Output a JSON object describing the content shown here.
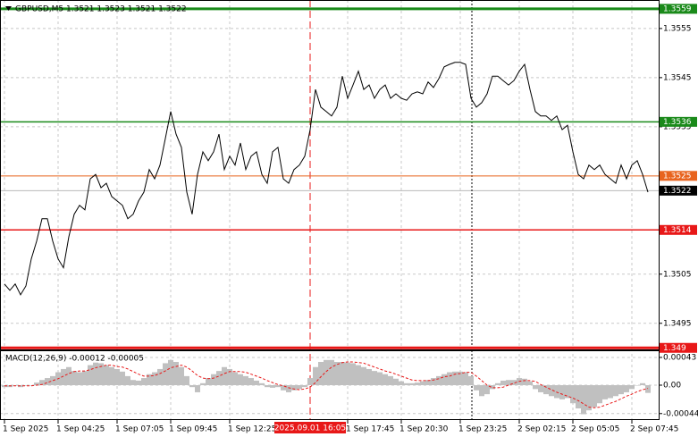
{
  "chart_data": [
    {
      "type": "line",
      "title": "GBPUSD,M5  1.3521 1.3523 1.3521 1.3522",
      "color": "#000000",
      "categories": [
        "1 Sep 2025",
        null,
        null,
        null,
        null,
        null,
        null,
        null,
        null,
        null,
        "1 Sep 04:25",
        null,
        null,
        null,
        null,
        null,
        null,
        null,
        null,
        null,
        null,
        "1 Sep 07:05",
        null,
        null,
        null,
        null,
        null,
        null,
        null,
        null,
        null,
        "1 Sep 09:45",
        null,
        null,
        null,
        null,
        null,
        null,
        null,
        null,
        null,
        null,
        "1 Sep 12:25",
        null,
        null,
        null,
        null,
        null,
        null,
        null,
        null,
        null,
        null,
        null,
        null,
        null,
        null,
        "2025.09.01 16:05",
        null,
        null,
        null,
        null,
        null,
        null,
        "1 Sep 17:45",
        null,
        null,
        null,
        null,
        null,
        null,
        null,
        null,
        null,
        "1 Sep 20:30",
        null,
        null,
        null,
        null,
        null,
        null,
        null,
        null,
        null,
        null,
        "1 Sep 23:25",
        null,
        null,
        null,
        null,
        null,
        null,
        null,
        null,
        null,
        null,
        "2 Sep 02:15",
        null,
        null,
        null,
        null,
        null,
        null,
        null,
        null,
        null,
        "2 Sep 05:05",
        null,
        null,
        null,
        null,
        null,
        null,
        null,
        null,
        null,
        null,
        "2 Sep 07:45",
        null,
        null,
        null
      ],
      "values": [
        1.3503,
        1.35017,
        1.3503,
        1.35008,
        1.35026,
        1.35081,
        1.35117,
        1.35163,
        1.35163,
        1.35117,
        1.35081,
        1.35063,
        1.35126,
        1.35172,
        1.3519,
        1.35181,
        1.35244,
        1.35253,
        1.35226,
        1.35235,
        1.35208,
        1.35199,
        1.3519,
        1.35163,
        1.35172,
        1.35199,
        1.35217,
        1.35263,
        1.35244,
        1.35272,
        1.35326,
        1.35381,
        1.35335,
        1.35308,
        1.35217,
        1.35172,
        1.35253,
        1.35299,
        1.35281,
        1.35299,
        1.35335,
        1.35263,
        1.3529,
        1.35272,
        1.35317,
        1.35263,
        1.3529,
        1.35299,
        1.35253,
        1.35235,
        1.35299,
        1.35308,
        1.35244,
        1.35235,
        1.35263,
        1.35272,
        1.3529,
        1.35344,
        1.35426,
        1.3539,
        1.35381,
        1.35372,
        1.3539,
        1.35453,
        1.35408,
        1.35435,
        1.35463,
        1.35426,
        1.35435,
        1.35408,
        1.35426,
        1.35435,
        1.35408,
        1.35417,
        1.35408,
        1.35404,
        1.35417,
        1.35421,
        1.35417,
        1.35441,
        1.3543,
        1.35448,
        1.35472,
        1.35477,
        1.35481,
        1.35481,
        1.35477,
        1.35408,
        1.3539,
        1.35399,
        1.35417,
        1.35453,
        1.35453,
        1.35444,
        1.35435,
        1.35444,
        1.35463,
        1.35477,
        1.35426,
        1.35381,
        1.35372,
        1.35372,
        1.35363,
        1.35372,
        1.35344,
        1.35353,
        1.35299,
        1.35253,
        1.35244,
        1.35272,
        1.35263,
        1.35272,
        1.35253,
        1.35244,
        1.35235,
        1.35272,
        1.35244,
        1.35272,
        1.35281,
        1.35253,
        1.35217
      ],
      "ylim": [
        1.34895,
        1.35608
      ],
      "yticks": [
        1.3555,
        1.3545,
        1.3535,
        1.3505,
        1.3495
      ],
      "grid": true,
      "levels": [
        {
          "value": 1.3559,
          "color": "#1a8a1a",
          "line_width": 3
        },
        {
          "value": 1.3536,
          "color": "#1a8a1a",
          "line_width": 1.5
        },
        {
          "value": 1.3525,
          "color": "#e8641e",
          "line_width": 1
        },
        {
          "value": 1.3514,
          "color": "#e81818",
          "line_width": 1.5
        },
        {
          "value": 1.349,
          "color": "#e81818",
          "line_width": 3
        }
      ],
      "current": {
        "value": 1.3522,
        "color": "#000000"
      },
      "crosshair": "2025.09.01 16:05",
      "crosshair_color": "#e81818"
    },
    {
      "type": "macd",
      "title": "MACD(12,26,9) -0.00012 -0.00005",
      "ylim": [
        -0.00054,
        0.00054
      ],
      "yticks": [
        0.00043,
        {
          "value": 0,
          "label": "0.00"
        },
        -0.00044
      ],
      "series": [
        {
          "name": "MACD",
          "color": "#c0c0c0",
          "values": [
            -3e-05,
            -3e-05,
            -1e-05,
            -3e-05,
            -1e-05,
            0,
            4e-05,
            8e-05,
            0.00011,
            0.00014,
            0.0002,
            0.00025,
            0.00028,
            0.00022,
            0.0002,
            0.00022,
            0.00031,
            0.00035,
            0.00034,
            0.00031,
            0.00028,
            0.00025,
            0.00021,
            0.00014,
            8e-05,
            7e-05,
            0.00011,
            0.00017,
            0.0002,
            0.00025,
            0.00034,
            0.00039,
            0.00036,
            0.00028,
            0.00014,
            -3e-05,
            -0.00011,
            3e-05,
            0.00011,
            0.00017,
            0.00022,
            0.00028,
            0.00025,
            0.0002,
            0.00017,
            0.00014,
            0.00011,
            7e-05,
            3e-05,
            -3e-05,
            -4e-05,
            -3e-05,
            -8e-05,
            -0.00011,
            -8e-05,
            -6e-05,
            -3e-05,
            0.00011,
            0.00028,
            0.00036,
            0.00039,
            0.00039,
            0.00036,
            0.00036,
            0.00035,
            0.00034,
            0.00031,
            0.00028,
            0.00025,
            0.00022,
            0.0002,
            0.00017,
            0.00014,
            0.0001,
            6e-05,
            3e-05,
            3e-05,
            4e-05,
            6e-05,
            8e-05,
            0.00011,
            0.00014,
            0.00017,
            0.0002,
            0.00021,
            0.00021,
            0.0002,
            0.00014,
            -8e-05,
            -0.00017,
            -0.00014,
            -6e-05,
            3e-05,
            7e-05,
            8e-05,
            8e-05,
            0.00011,
            0.0001,
            6e-05,
            -6e-05,
            -0.00011,
            -0.00014,
            -0.00017,
            -0.0002,
            -0.00022,
            -0.0002,
            -0.00028,
            -0.00036,
            -0.00045,
            -0.00039,
            -0.00034,
            -0.00028,
            -0.00022,
            -0.0002,
            -0.00017,
            -0.00014,
            -0.00011,
            -6e-05,
            0,
            3e-05,
            -0.00012
          ]
        },
        {
          "name": "Signal",
          "color": "#e81818",
          "values": [
            -1e-05,
            -1e-05,
            -1e-05,
            -1e-05,
            -1e-05,
            -1e-05,
            0,
            1e-05,
            4e-05,
            7e-05,
            0.0001,
            0.00014,
            0.00018,
            0.00021,
            0.00022,
            0.00022,
            0.00024,
            0.00027,
            0.00029,
            0.00031,
            0.00031,
            0.00029,
            0.00028,
            0.00025,
            0.00021,
            0.00017,
            0.00014,
            0.00014,
            0.00015,
            0.00018,
            0.00022,
            0.00027,
            0.00029,
            0.00031,
            0.00028,
            0.00022,
            0.00015,
            0.00011,
            0.0001,
            0.00011,
            0.00014,
            0.00018,
            0.00021,
            0.00021,
            0.00021,
            0.0002,
            0.00017,
            0.00014,
            0.00011,
            7e-05,
            4e-05,
            1e-05,
            -1e-05,
            -4e-05,
            -6e-05,
            -7e-05,
            -6e-05,
            -3e-05,
            4e-05,
            0.00013,
            0.00021,
            0.00028,
            0.00032,
            0.00035,
            0.00036,
            0.00036,
            0.00035,
            0.00034,
            0.00031,
            0.00028,
            0.00025,
            0.00022,
            0.0002,
            0.00017,
            0.00014,
            0.00011,
            8e-05,
            7e-05,
            7e-05,
            7e-05,
            8e-05,
            0.0001,
            0.00013,
            0.00014,
            0.00017,
            0.00018,
            0.0002,
            0.0002,
            0.00014,
            7e-05,
            0,
            -4e-05,
            -4e-05,
            -3e-05,
            0,
            3e-05,
            6e-05,
            7e-05,
            7e-05,
            6e-05,
            1e-05,
            -3e-05,
            -7e-05,
            -0.00011,
            -0.00014,
            -0.00017,
            -0.0002,
            -0.00024,
            -0.00029,
            -0.00034,
            -0.00035,
            -0.00034,
            -0.00031,
            -0.00028,
            -0.00025,
            -0.00021,
            -0.00017,
            -0.00014,
            -0.0001,
            -7e-05,
            -5e-05
          ]
        }
      ]
    }
  ]
}
